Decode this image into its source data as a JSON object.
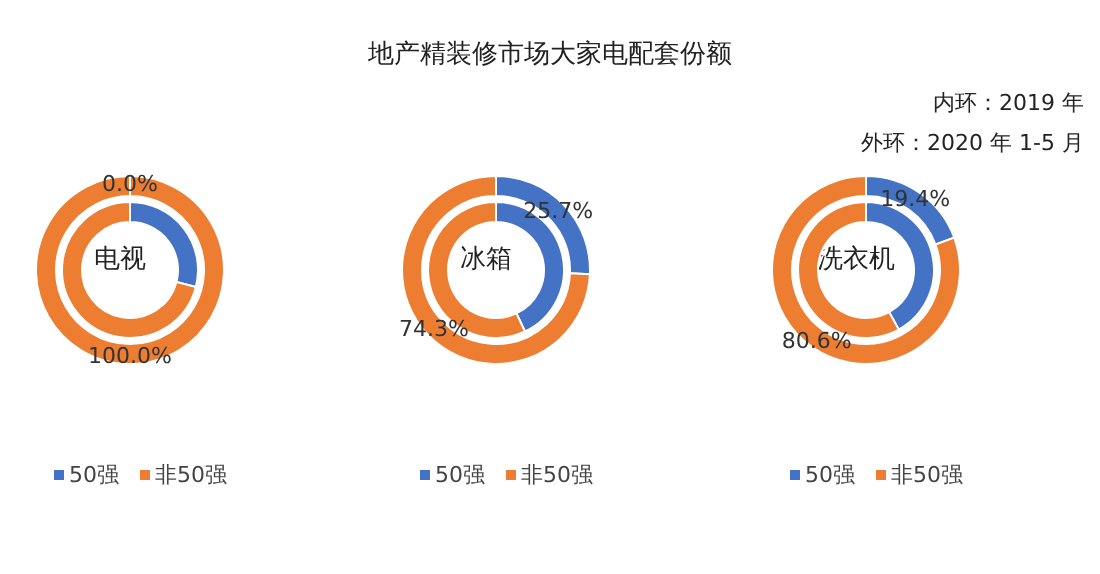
{
  "chart_data": [
    {
      "type": "donut",
      "title": "电视",
      "annotations": [
        "地产精装修市场大家电配套份额",
        "内环：2019 年",
        "外环：2020 年 1-5 月"
      ],
      "categories": [
        "50强",
        "非50强"
      ],
      "legend": "bottom",
      "series": [
        {
          "values": [
            29,
            71
          ],
          "colors": [
            "#4472c4",
            "#ed7d31"
          ]
        },
        {
          "values": [
            0.0,
            100.0
          ],
          "colors": [
            "#4472c4",
            "#ed7d31"
          ],
          "value_labels": [
            "0.0%",
            "100.0%"
          ]
        }
      ]
    },
    {
      "type": "donut",
      "title": "冰箱",
      "categories": [
        "50强",
        "非50强"
      ],
      "legend": "bottom",
      "series": [
        {
          "values": [
            43,
            57
          ],
          "colors": [
            "#4472c4",
            "#ed7d31"
          ]
        },
        {
          "values": [
            25.7,
            74.3
          ],
          "colors": [
            "#4472c4",
            "#ed7d31"
          ],
          "value_labels": [
            "25.7%",
            "74.3%"
          ]
        }
      ]
    },
    {
      "type": "donut",
      "title": "洗衣机",
      "categories": [
        "50强",
        "非50强"
      ],
      "legend": "bottom",
      "series": [
        {
          "values": [
            42,
            58
          ],
          "colors": [
            "#4472c4",
            "#ed7d31"
          ]
        },
        {
          "values": [
            19.4,
            80.6
          ],
          "colors": [
            "#4472c4",
            "#ed7d31"
          ],
          "value_labels": [
            "19.4%",
            "80.6%"
          ]
        }
      ]
    }
  ]
}
